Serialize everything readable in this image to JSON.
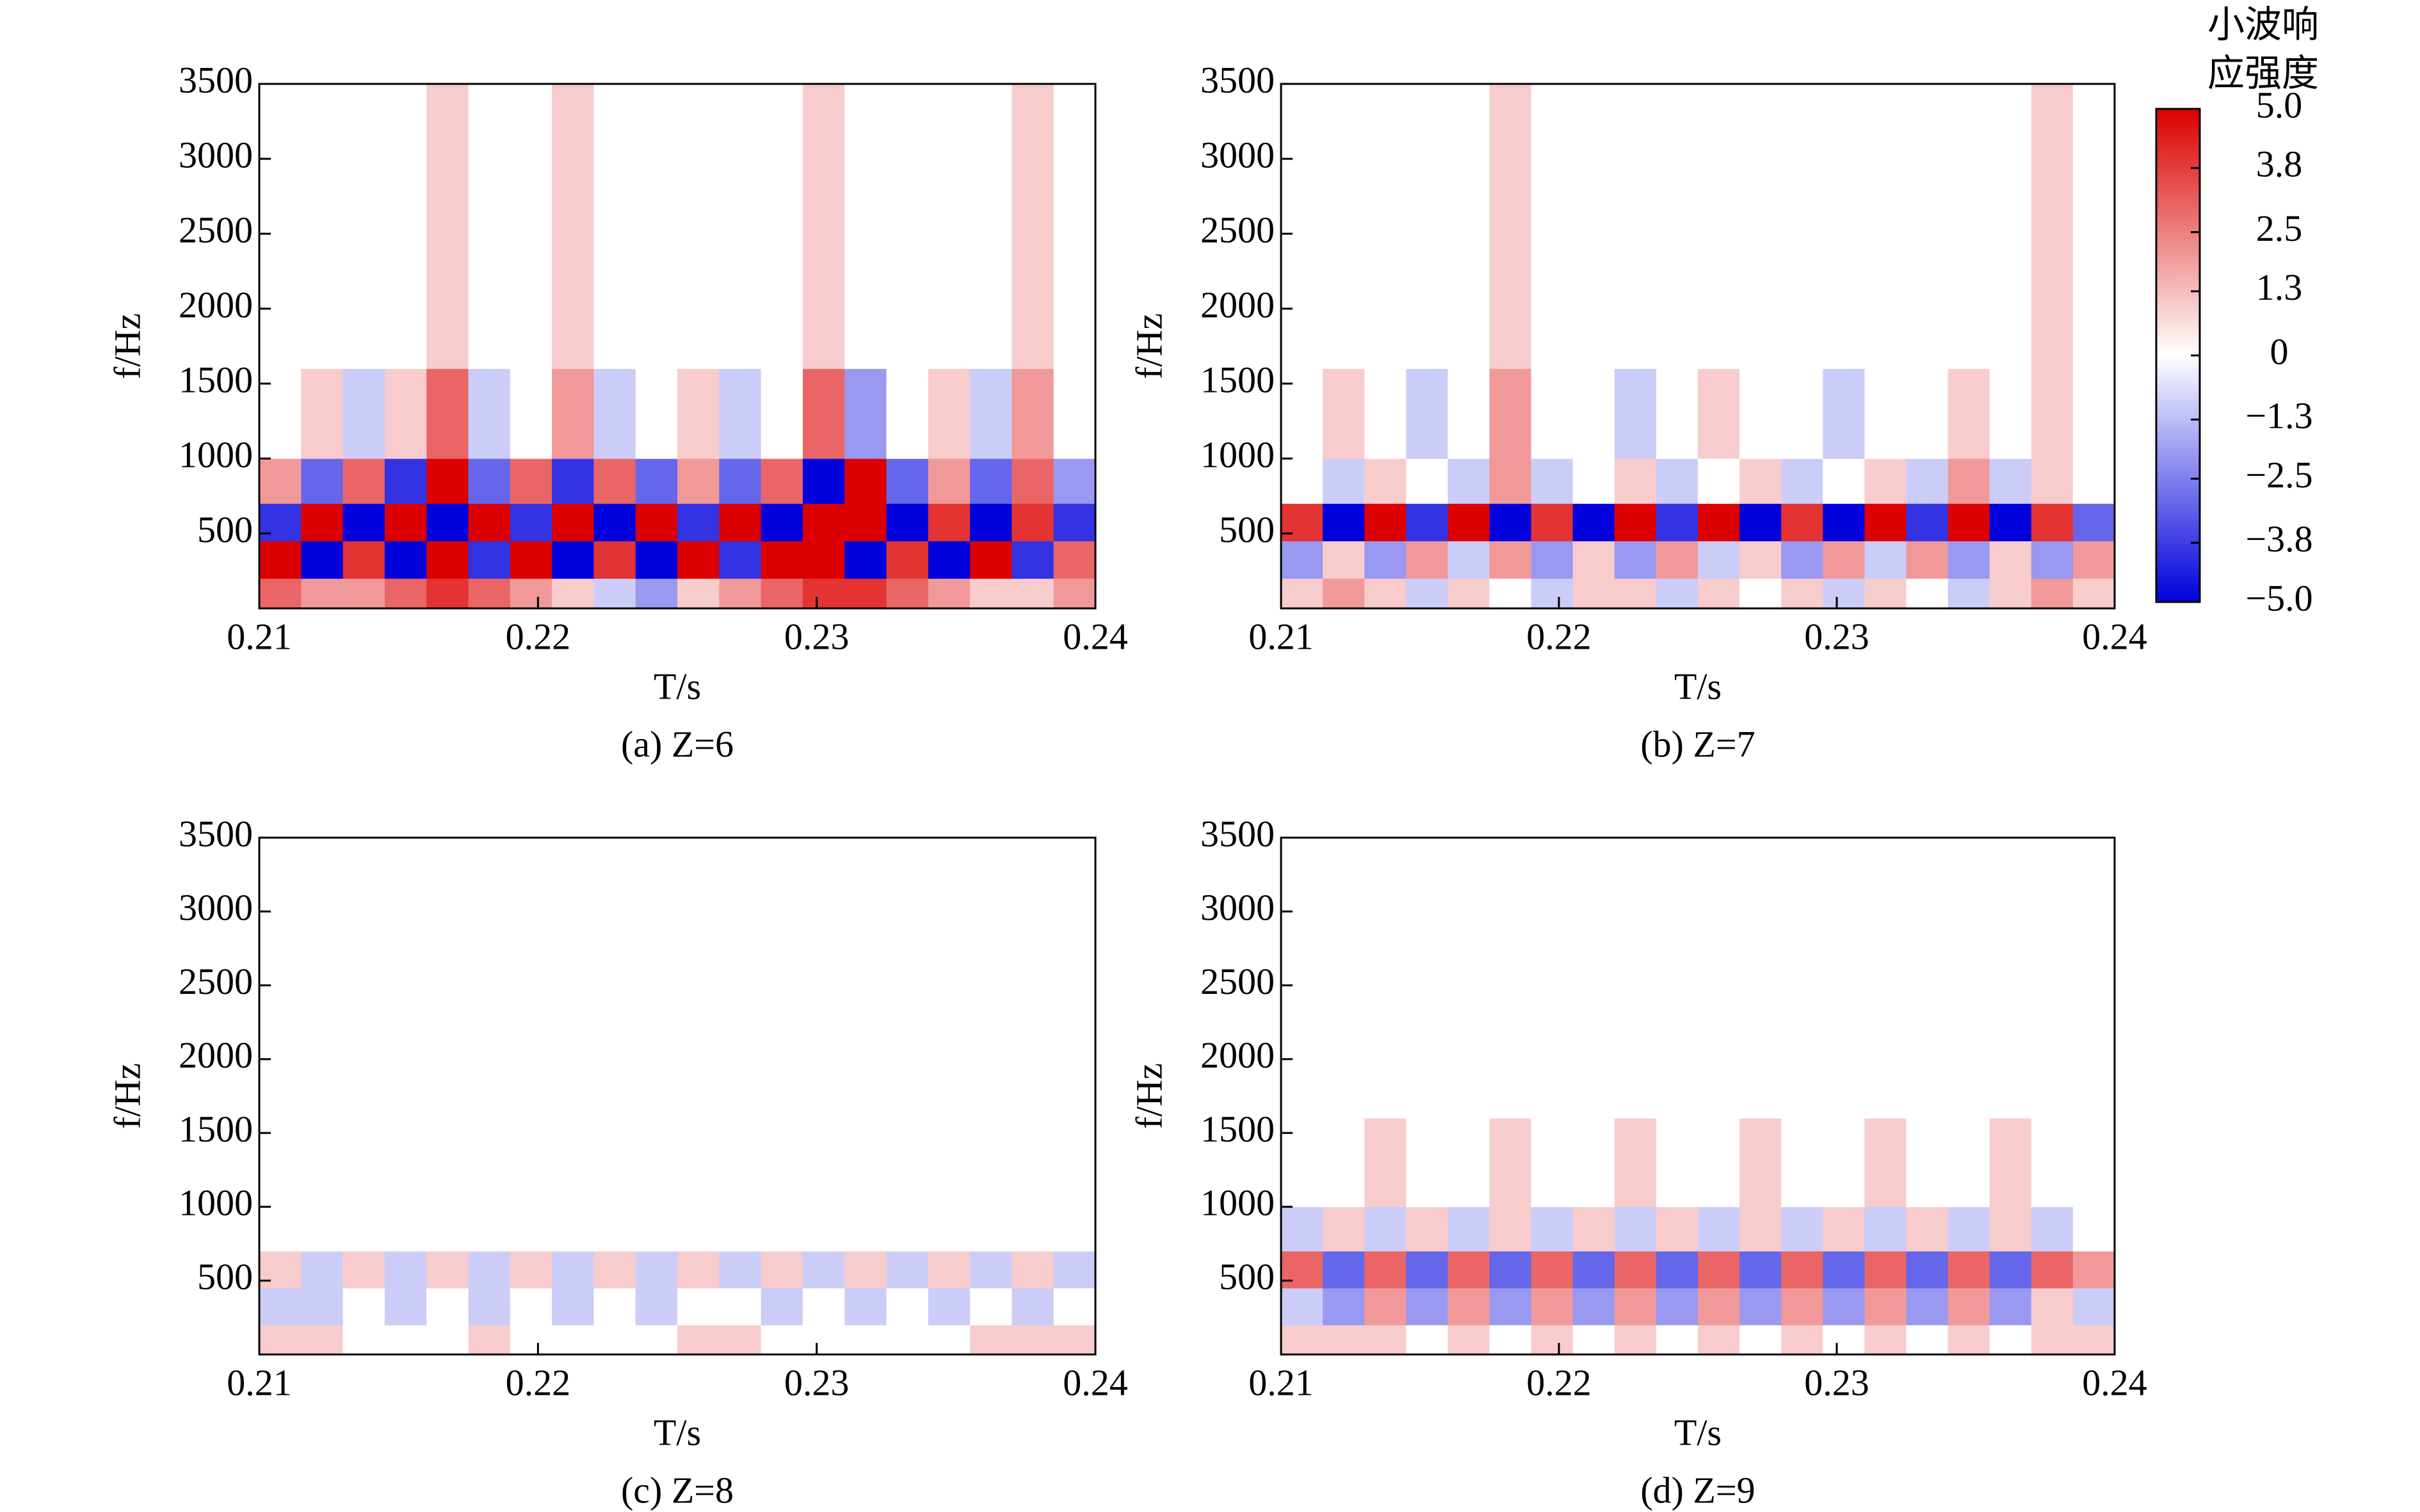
{
  "chart_data": [
    {
      "type": "heatmap",
      "title": "(a) Z=6",
      "xlabel": "T/s",
      "ylabel": "f/Hz",
      "xlim": [
        0.21,
        0.24
      ],
      "xticks": [
        0.21,
        0.22,
        0.23,
        0.24
      ],
      "ylim": [
        0,
        3500
      ],
      "yticks": [
        500,
        1000,
        1500,
        2000,
        2500,
        3000,
        3500
      ],
      "ybins": [
        0,
        200,
        450,
        700,
        1000,
        1600,
        3500
      ],
      "z": [
        [
          3,
          2,
          2,
          3,
          4,
          3,
          2,
          1,
          -1,
          -2,
          1,
          2,
          3,
          4,
          4,
          3,
          2,
          1,
          1,
          2
        ],
        [
          5,
          -5,
          4,
          -5,
          5,
          -4,
          5,
          -5,
          4,
          -5,
          5,
          -4,
          5,
          5,
          -5,
          4,
          -5,
          5,
          -4,
          3
        ],
        [
          -4,
          5,
          -5,
          5,
          -5,
          5,
          -4,
          5,
          -5,
          5,
          -4,
          5,
          -5,
          5,
          5,
          -5,
          4,
          -5,
          4,
          -4
        ],
        [
          2,
          -3,
          3,
          -4,
          5,
          -3,
          3,
          -4,
          3,
          -3,
          2,
          -3,
          3,
          -5,
          5,
          -3,
          2,
          -3,
          3,
          -2
        ],
        [
          0,
          1,
          -1,
          1,
          3,
          -1,
          0,
          2,
          -1,
          0,
          1,
          -1,
          0,
          3,
          -2,
          0,
          1,
          -1,
          2,
          0
        ],
        [
          0,
          0,
          0,
          0,
          1,
          0,
          0,
          1,
          0,
          0,
          0,
          0,
          0,
          1,
          0,
          0,
          0,
          0,
          1,
          0
        ]
      ]
    },
    {
      "type": "heatmap",
      "title": "(b) Z=7",
      "xlabel": "T/s",
      "ylabel": "f/Hz",
      "xlim": [
        0.21,
        0.24
      ],
      "xticks": [
        0.21,
        0.22,
        0.23,
        0.24
      ],
      "ylim": [
        0,
        3500
      ],
      "yticks": [
        500,
        1000,
        1500,
        2000,
        2500,
        3000,
        3500
      ],
      "ybins": [
        0,
        200,
        450,
        700,
        1000,
        1600,
        3500
      ],
      "z": [
        [
          1,
          2,
          1,
          -1,
          1,
          0,
          -1,
          1,
          1,
          -1,
          1,
          0,
          1,
          -1,
          1,
          0,
          -1,
          1,
          2,
          1
        ],
        [
          -2,
          1,
          -2,
          2,
          -1,
          2,
          -2,
          1,
          -2,
          2,
          -1,
          1,
          -2,
          2,
          -1,
          2,
          -2,
          1,
          -2,
          2
        ],
        [
          4,
          -5,
          5,
          -4,
          5,
          -5,
          4,
          -5,
          5,
          -4,
          5,
          -5,
          4,
          -5,
          5,
          -4,
          5,
          -5,
          4,
          -3
        ],
        [
          0,
          -1,
          1,
          0,
          -1,
          2,
          -1,
          0,
          1,
          -1,
          0,
          1,
          -1,
          0,
          1,
          -1,
          2,
          -1,
          1,
          0
        ],
        [
          0,
          1,
          0,
          -1,
          0,
          2,
          0,
          0,
          -1,
          0,
          1,
          0,
          0,
          -1,
          0,
          0,
          1,
          0,
          1,
          0
        ],
        [
          0,
          0,
          0,
          0,
          0,
          1,
          0,
          0,
          0,
          0,
          0,
          0,
          0,
          0,
          0,
          0,
          0,
          0,
          1,
          0
        ]
      ],
      "colorbar": {
        "label": "小波响应强度",
        "zlim": [
          -5,
          5
        ],
        "zticks": [
          {
            "value": 5,
            "label": "5.0"
          },
          3.8,
          2.5,
          1.3,
          0,
          {
            "value": -1.3,
            "label": "−1.3"
          },
          {
            "value": -2.5,
            "label": "−2.5"
          },
          {
            "value": -3.8,
            "label": "−3.8"
          },
          {
            "value": -5,
            "label": "−5.0"
          }
        ],
        "colors": [
          "#0000dc",
          "#ffffff",
          "#dc0000"
        ]
      }
    },
    {
      "type": "heatmap",
      "title": "(c) Z=8",
      "xlabel": "T/s",
      "ylabel": "f/Hz",
      "xlim": [
        0.21,
        0.24
      ],
      "xticks": [
        0.21,
        0.22,
        0.23,
        0.24
      ],
      "ylim": [
        0,
        3500
      ],
      "yticks": [
        500,
        1000,
        1500,
        2000,
        2500,
        3000,
        3500
      ],
      "ybins": [
        0,
        200,
        450,
        700,
        1000,
        1600,
        3500
      ],
      "z": [
        [
          1,
          1,
          0,
          0,
          0,
          1,
          0,
          0,
          0,
          0,
          1,
          1,
          0,
          0,
          0,
          0,
          0,
          1,
          1,
          1
        ],
        [
          -1,
          -1,
          0,
          -1,
          0,
          -1,
          0,
          -1,
          0,
          -1,
          0,
          0,
          -1,
          0,
          -1,
          0,
          -1,
          0,
          -1,
          0
        ],
        [
          1,
          -1,
          1,
          -1,
          1,
          -1,
          1,
          -1,
          1,
          -1,
          1,
          -1,
          1,
          -1,
          1,
          -1,
          1,
          -1,
          1,
          -1
        ],
        [
          0,
          0,
          0,
          0,
          0,
          0,
          0,
          0,
          0,
          0,
          0,
          0,
          0,
          0,
          0,
          0,
          0,
          0,
          0,
          0
        ],
        [
          0,
          0,
          0,
          0,
          0,
          0,
          0,
          0,
          0,
          0,
          0,
          0,
          0,
          0,
          0,
          0,
          0,
          0,
          0,
          0
        ],
        [
          0,
          0,
          0,
          0,
          0,
          0,
          0,
          0,
          0,
          0,
          0,
          0,
          0,
          0,
          0,
          0,
          0,
          0,
          0,
          0
        ]
      ]
    },
    {
      "type": "heatmap",
      "title": "(d) Z=9",
      "xlabel": "T/s",
      "ylabel": "f/Hz",
      "xlim": [
        0.21,
        0.24
      ],
      "xticks": [
        0.21,
        0.22,
        0.23,
        0.24
      ],
      "ylim": [
        0,
        3500
      ],
      "yticks": [
        500,
        1000,
        1500,
        2000,
        2500,
        3000,
        3500
      ],
      "ybins": [
        0,
        200,
        450,
        700,
        1000,
        1600,
        3500
      ],
      "z": [
        [
          1,
          1,
          1,
          0,
          1,
          0,
          1,
          0,
          1,
          0,
          1,
          0,
          1,
          0,
          1,
          0,
          1,
          0,
          1,
          1
        ],
        [
          -1,
          -2,
          2,
          -2,
          2,
          -2,
          2,
          -2,
          2,
          -2,
          2,
          -2,
          2,
          -2,
          2,
          -2,
          2,
          -2,
          1,
          -1
        ],
        [
          3,
          -3,
          3,
          -3,
          3,
          -3,
          3,
          -3,
          3,
          -3,
          3,
          -3,
          3,
          -3,
          3,
          -3,
          3,
          -3,
          3,
          2
        ],
        [
          -1,
          1,
          -1,
          1,
          -1,
          1,
          -1,
          1,
          -1,
          1,
          -1,
          1,
          -1,
          1,
          -1,
          1,
          -1,
          1,
          -1,
          0
        ],
        [
          0,
          0,
          1,
          0,
          0,
          1,
          0,
          0,
          1,
          0,
          0,
          1,
          0,
          0,
          1,
          0,
          0,
          1,
          0,
          0
        ],
        [
          0,
          0,
          0,
          0,
          0,
          0,
          0,
          0,
          0,
          0,
          0,
          0,
          0,
          0,
          0,
          0,
          0,
          0,
          0,
          0
        ]
      ]
    }
  ]
}
